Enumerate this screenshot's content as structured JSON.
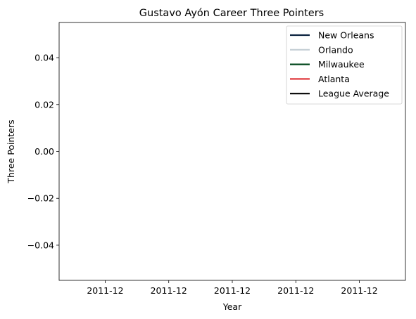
{
  "chart_data": {
    "type": "line",
    "title": "Gustavo Ayón Career Three Pointers",
    "xlabel": "Year",
    "ylabel": "Three Pointers",
    "x_tick_labels": [
      "2011-12",
      "2011-12",
      "2011-12",
      "2011-12",
      "2011-12"
    ],
    "y_tick_labels": [
      "0.04",
      "0.02",
      "0.00",
      "−0.02",
      "−0.04"
    ],
    "y_ticks": [
      0.04,
      0.02,
      0.0,
      -0.02,
      -0.04
    ],
    "ylim": [
      -0.055,
      0.055
    ],
    "grid": false,
    "legend_position": "top-right",
    "series": [
      {
        "name": "New Orleans",
        "color": "#0c2340",
        "values": []
      },
      {
        "name": "Orlando",
        "color": "#c4ced4",
        "values": []
      },
      {
        "name": "Milwaukee",
        "color": "#00471b",
        "values": []
      },
      {
        "name": "Atlanta",
        "color": "#e03a3e",
        "values": []
      },
      {
        "name": "League Average",
        "color": "#000000",
        "values": []
      }
    ]
  }
}
